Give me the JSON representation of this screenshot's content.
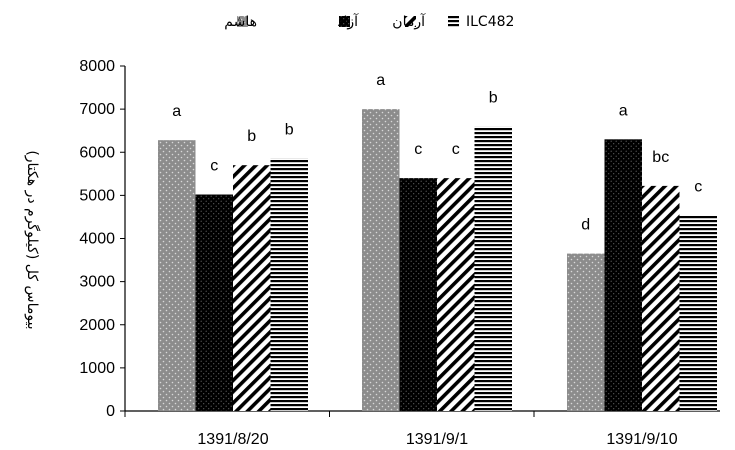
{
  "chart_data": {
    "type": "bar",
    "categories": [
      "1391/8/20",
      "1391/9/1",
      "1391/9/10"
    ],
    "series": [
      {
        "name": "هاشم",
        "values": [
          6280,
          7000,
          3650
        ],
        "labels": [
          "a",
          "a",
          "d"
        ],
        "pattern": "dots",
        "color": "#8c8c8c"
      },
      {
        "name": "آزاد",
        "values": [
          5020,
          5400,
          6300
        ],
        "labels": [
          "c",
          "c",
          "a"
        ],
        "pattern": "dark-dots",
        "color": "#000000"
      },
      {
        "name": "آرمان",
        "values": [
          5700,
          5400,
          5220
        ],
        "labels": [
          "b",
          "c",
          "bc"
        ],
        "pattern": "diagonal",
        "color": "#000000"
      },
      {
        "name": "ILC482",
        "values": [
          5860,
          6600,
          4530
        ],
        "labels": [
          "b",
          "b",
          "c"
        ],
        "pattern": "horizontal",
        "color": "#000000"
      }
    ],
    "ylabel": "بیوماس کل (کیلوگرم در هکتار)",
    "xlabel": "",
    "ylim": [
      0,
      8000
    ],
    "yticks": [
      0,
      1000,
      2000,
      3000,
      4000,
      5000,
      6000,
      7000,
      8000
    ],
    "grid": false,
    "legend_position": "top"
  }
}
